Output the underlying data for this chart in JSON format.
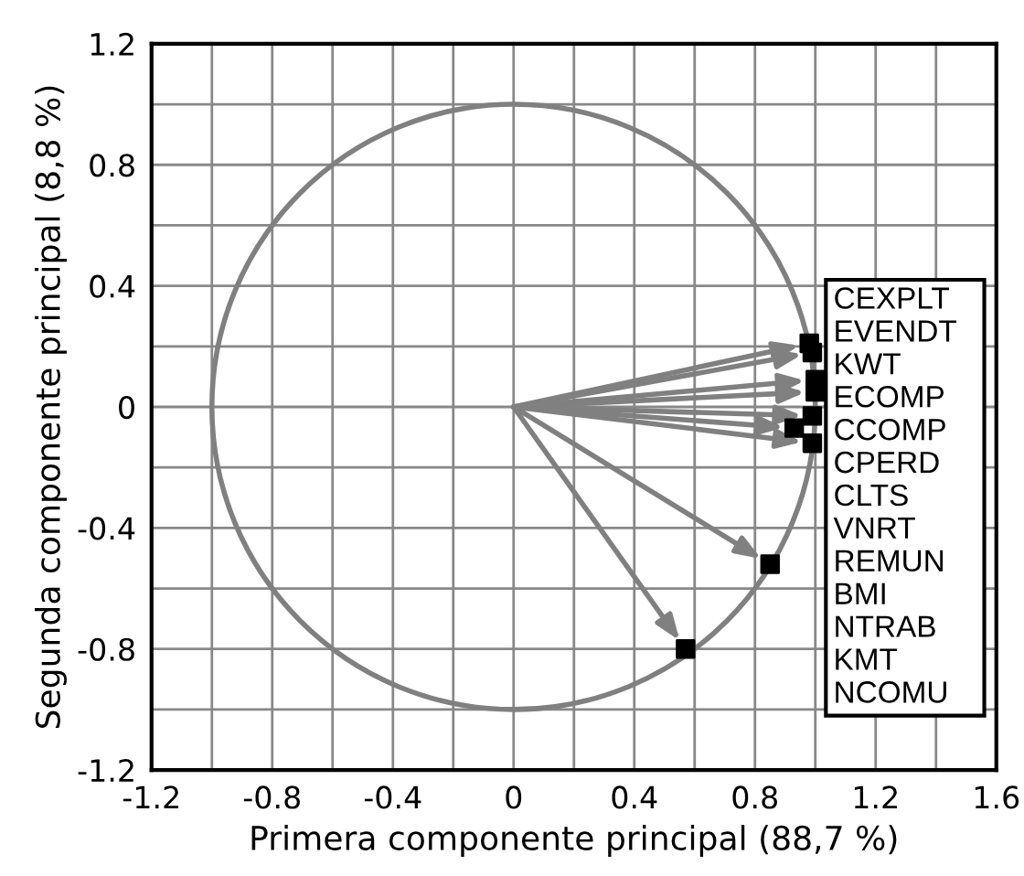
{
  "chart_data": {
    "type": "scatter",
    "xlabel": "Primera componente principal (88,7 %)",
    "ylabel": "Segunda componente principal (8,8 %)",
    "xlim": [
      -1.2,
      1.6
    ],
    "ylim": [
      -1.2,
      1.2
    ],
    "xticks": [
      -1.2,
      {
        "value": -1.0,
        "label": null
      },
      -0.8,
      {
        "value": -0.6,
        "label": null
      },
      -0.4,
      {
        "value": -0.2,
        "label": null
      },
      0,
      {
        "value": 0.2,
        "label": null
      },
      0.4,
      {
        "value": 0.6,
        "label": null
      },
      0.8,
      {
        "value": 1.0,
        "label": null
      },
      1.2,
      {
        "value": 1.4,
        "label": null
      },
      1.6
    ],
    "yticks": [
      -1.2,
      {
        "value": -1.0,
        "label": null
      },
      -0.8,
      {
        "value": -0.6,
        "label": null
      },
      -0.4,
      {
        "value": -0.2,
        "label": null
      },
      0,
      {
        "value": 0.2,
        "label": null
      },
      0.4,
      {
        "value": 0.6,
        "label": null
      },
      0.8,
      {
        "value": 1.0,
        "label": null
      },
      1.2
    ],
    "grid": true,
    "series": [
      {
        "type": "scatter",
        "color": "#000000",
        "marker": "square",
        "x": [
          0.98,
          0.99,
          1.0,
          1.0,
          0.99,
          0.93,
          0.99,
          0.85,
          0.57
        ],
        "values": [
          0.21,
          0.18,
          0.09,
          0.05,
          -0.03,
          -0.07,
          -0.12,
          -0.52,
          -0.8
        ]
      }
    ],
    "annotations": [
      "CEXPLT",
      "EVENDT",
      "KWT",
      "ECOMP",
      "CCOMP",
      "CPERD",
      "CLTS",
      "VNRT",
      "REMUN",
      "BMI",
      "NTRAB",
      "KMT",
      "NCOMU"
    ]
  }
}
